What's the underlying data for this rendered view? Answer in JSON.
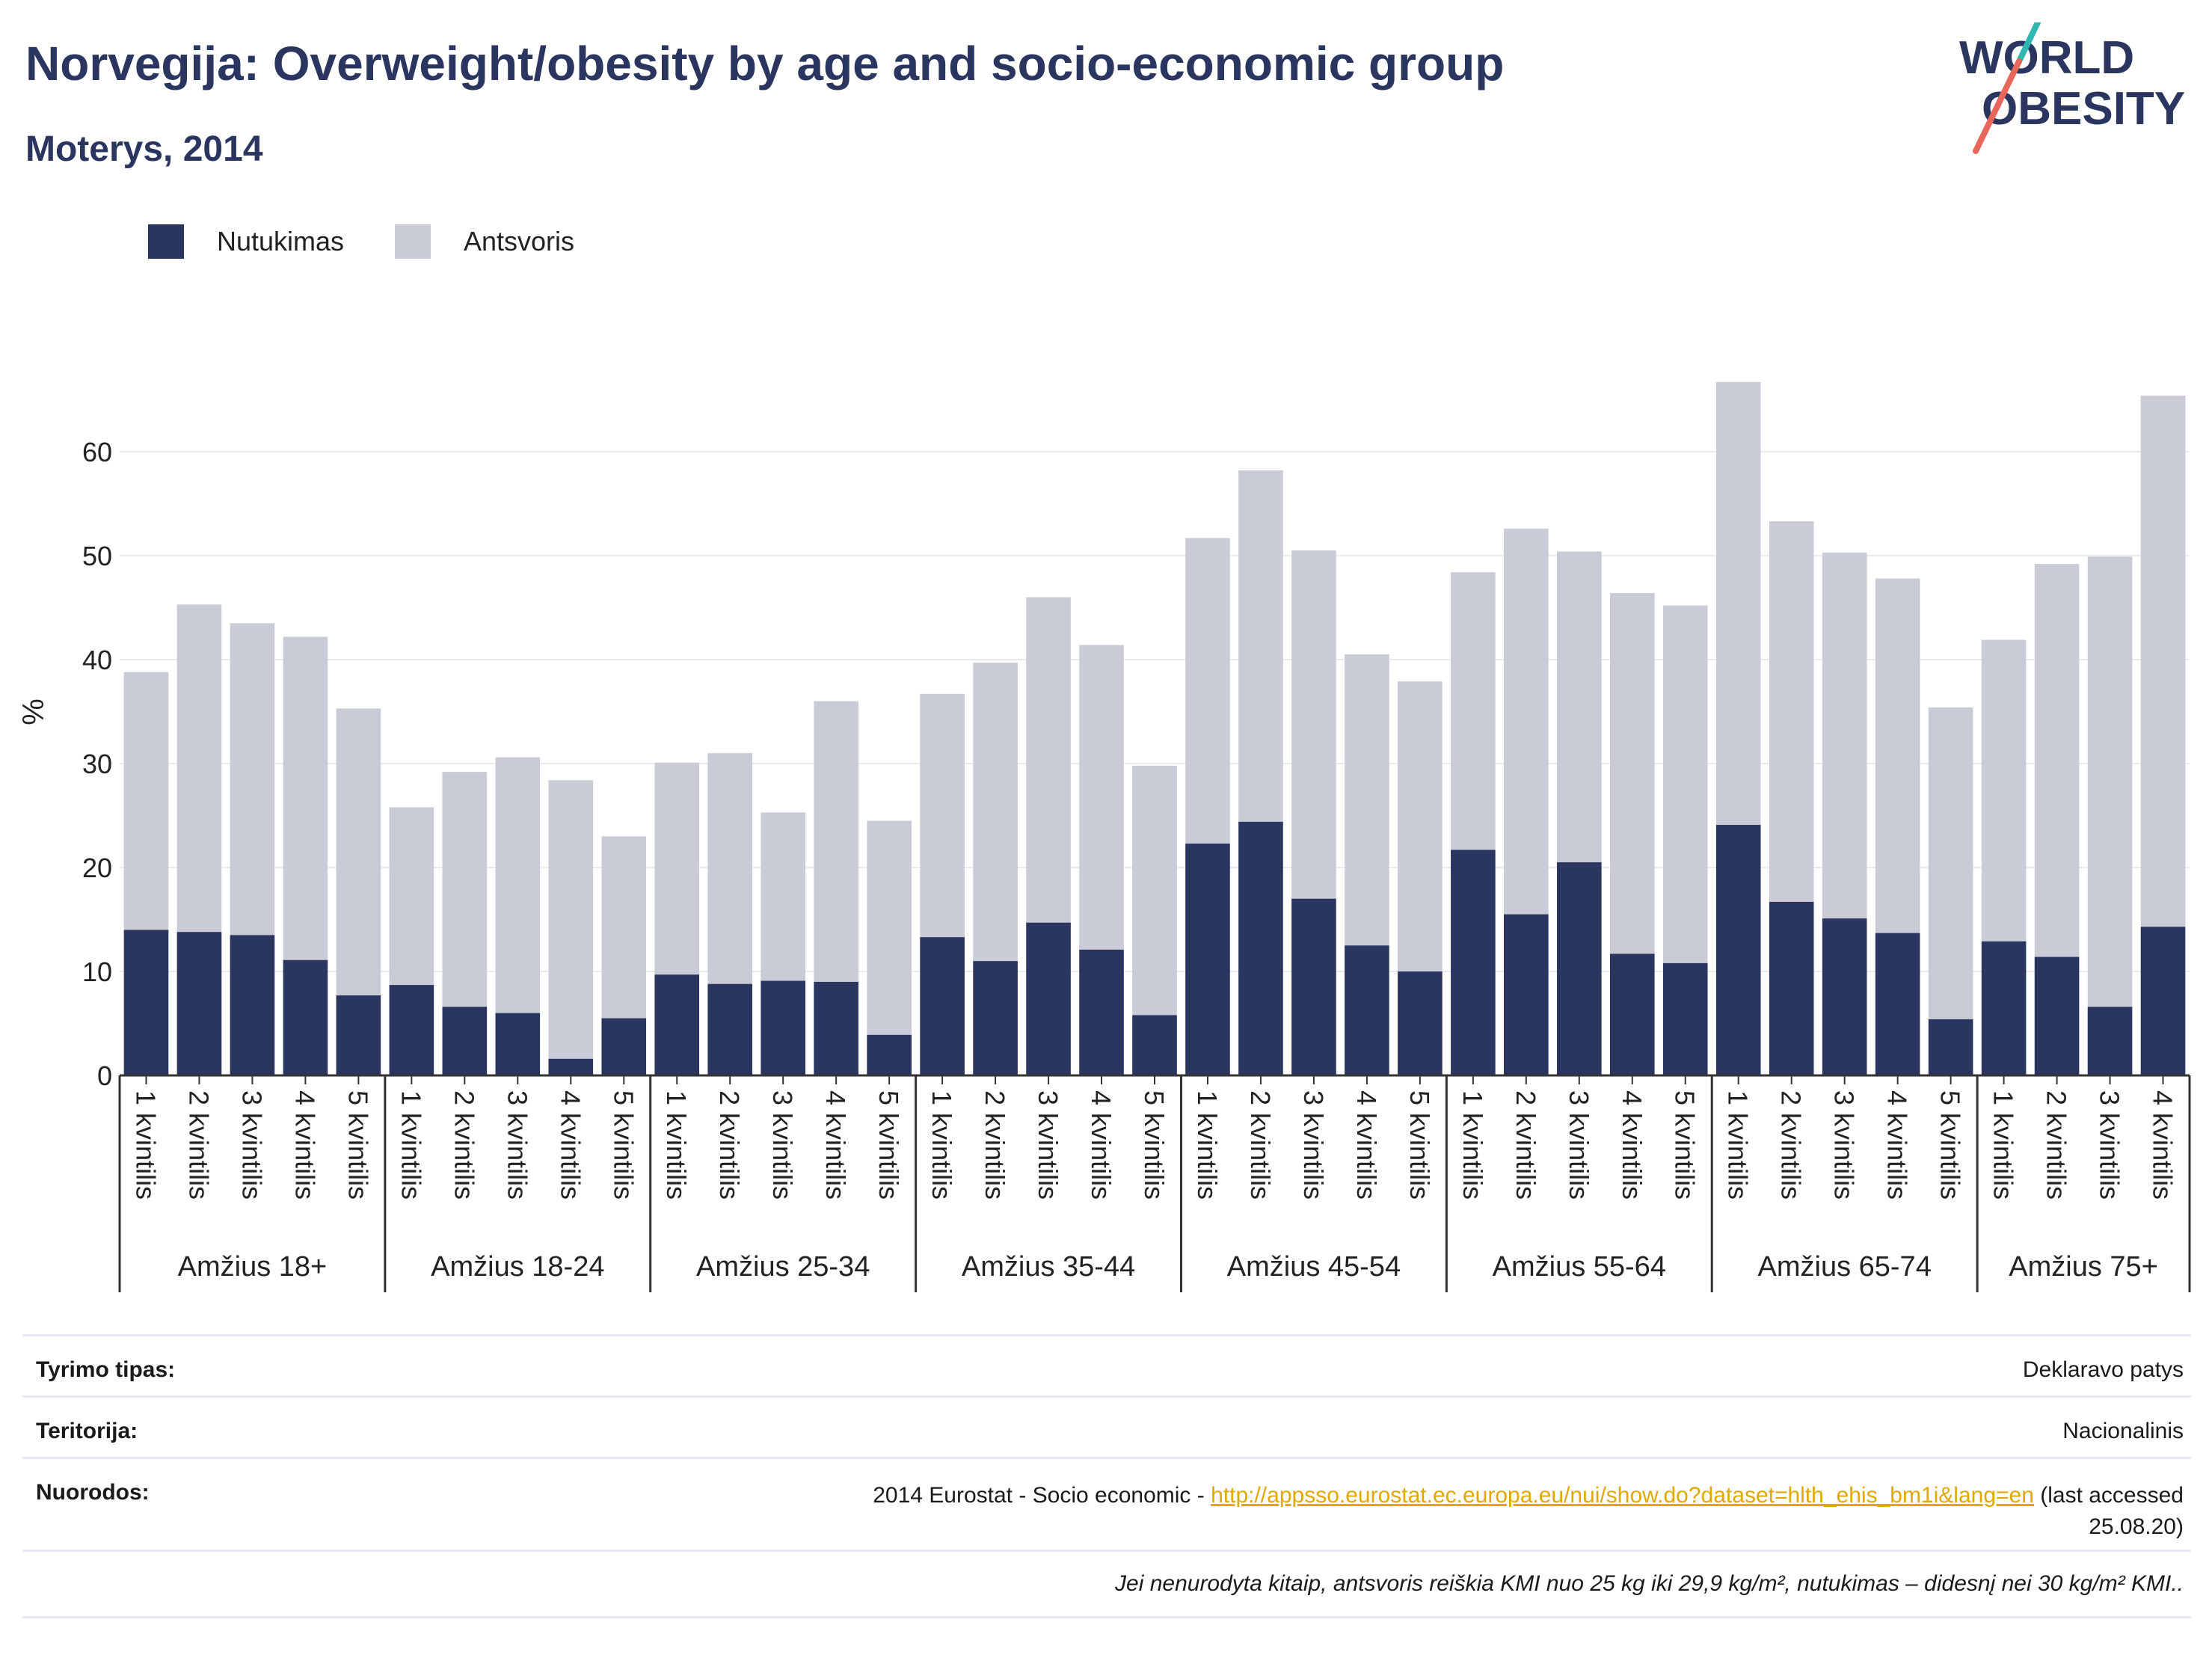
{
  "header": {
    "title": "Norvegija: Overweight/obesity by age and socio-economic group",
    "subtitle": "Moterys, 2014"
  },
  "logo": {
    "line1": "WORLD",
    "line2": "OBESITY"
  },
  "colors": {
    "obesity": "#2a3560",
    "overweight": "#c9cbd6",
    "title": "#2a3560",
    "accent_teal": "#2fb7b0",
    "accent_red": "#e8665a",
    "link": "#e0a800"
  },
  "chart_data": {
    "type": "bar",
    "stacked": true,
    "ylabel": "%",
    "ylim": [
      0,
      68
    ],
    "yticks": [
      0,
      10,
      20,
      30,
      40,
      50,
      60
    ],
    "grid": true,
    "legend_position": "top-left",
    "series": [
      {
        "name": "Nutukimas",
        "color": "#2a3560"
      },
      {
        "name": "Antsvoris",
        "color": "#c9cbd6"
      }
    ],
    "groups": [
      {
        "label": "Amžius 18+",
        "bars": [
          {
            "category": "1 kvintilis",
            "obesity": 14.0,
            "total": 38.8
          },
          {
            "category": "2 kvintilis",
            "obesity": 13.8,
            "total": 45.3
          },
          {
            "category": "3 kvintilis",
            "obesity": 13.5,
            "total": 43.5
          },
          {
            "category": "4 kvintilis",
            "obesity": 11.1,
            "total": 42.2
          },
          {
            "category": "5 kvintilis",
            "obesity": 7.7,
            "total": 35.3
          }
        ]
      },
      {
        "label": "Amžius 18-24",
        "bars": [
          {
            "category": "1 kvintilis",
            "obesity": 8.7,
            "total": 25.8
          },
          {
            "category": "2 kvintilis",
            "obesity": 6.6,
            "total": 29.2
          },
          {
            "category": "3 kvintilis",
            "obesity": 6.0,
            "total": 30.6
          },
          {
            "category": "4 kvintilis",
            "obesity": 1.6,
            "total": 28.4
          },
          {
            "category": "5 kvintilis",
            "obesity": 5.5,
            "total": 23.0
          }
        ]
      },
      {
        "label": "Amžius 25-34",
        "bars": [
          {
            "category": "1 kvintilis",
            "obesity": 9.7,
            "total": 30.1
          },
          {
            "category": "2 kvintilis",
            "obesity": 8.8,
            "total": 31.0
          },
          {
            "category": "3 kvintilis",
            "obesity": 9.1,
            "total": 25.3
          },
          {
            "category": "4 kvintilis",
            "obesity": 9.0,
            "total": 36.0
          },
          {
            "category": "5 kvintilis",
            "obesity": 3.9,
            "total": 24.5
          }
        ]
      },
      {
        "label": "Amžius 35-44",
        "bars": [
          {
            "category": "1 kvintilis",
            "obesity": 13.3,
            "total": 36.7
          },
          {
            "category": "2 kvintilis",
            "obesity": 11.0,
            "total": 39.7
          },
          {
            "category": "3 kvintilis",
            "obesity": 14.7,
            "total": 46.0
          },
          {
            "category": "4 kvintilis",
            "obesity": 12.1,
            "total": 41.4
          },
          {
            "category": "5 kvintilis",
            "obesity": 5.8,
            "total": 29.8
          }
        ]
      },
      {
        "label": "Amžius 45-54",
        "bars": [
          {
            "category": "1 kvintilis",
            "obesity": 22.3,
            "total": 51.7
          },
          {
            "category": "2 kvintilis",
            "obesity": 24.4,
            "total": 58.2
          },
          {
            "category": "3 kvintilis",
            "obesity": 17.0,
            "total": 50.5
          },
          {
            "category": "4 kvintilis",
            "obesity": 12.5,
            "total": 40.5
          },
          {
            "category": "5 kvintilis",
            "obesity": 10.0,
            "total": 37.9
          }
        ]
      },
      {
        "label": "Amžius 55-64",
        "bars": [
          {
            "category": "1 kvintilis",
            "obesity": 21.7,
            "total": 48.4
          },
          {
            "category": "2 kvintilis",
            "obesity": 15.5,
            "total": 52.6
          },
          {
            "category": "3 kvintilis",
            "obesity": 20.5,
            "total": 50.4
          },
          {
            "category": "4 kvintilis",
            "obesity": 11.7,
            "total": 46.4
          },
          {
            "category": "5 kvintilis",
            "obesity": 10.8,
            "total": 45.2
          }
        ]
      },
      {
        "label": "Amžius 65-74",
        "bars": [
          {
            "category": "1 kvintilis",
            "obesity": 24.1,
            "total": 66.7
          },
          {
            "category": "2 kvintilis",
            "obesity": 16.7,
            "total": 53.3
          },
          {
            "category": "3 kvintilis",
            "obesity": 15.1,
            "total": 50.3
          },
          {
            "category": "4 kvintilis",
            "obesity": 13.7,
            "total": 47.8
          },
          {
            "category": "5 kvintilis",
            "obesity": 5.4,
            "total": 35.4
          }
        ]
      },
      {
        "label": "Amžius 75+",
        "bars": [
          {
            "category": "1 kvintilis",
            "obesity": 12.9,
            "total": 41.9
          },
          {
            "category": "2 kvintilis",
            "obesity": 11.4,
            "total": 49.2
          },
          {
            "category": "3 kvintilis",
            "obesity": 6.6,
            "total": 49.9
          },
          {
            "category": "4 kvintilis",
            "obesity": 14.3,
            "total": 65.4
          }
        ]
      }
    ]
  },
  "info": {
    "survey_label": "Tyrimo tipas:",
    "survey_value": "Deklaravo patys",
    "territory_label": "Teritorija:",
    "territory_value": "Nacionalinis",
    "refs_label": "Nuorodos:",
    "refs_prefix": "2014 Eurostat - Socio economic - ",
    "refs_link": "http://appsso.eurostat.ec.europa.eu/nui/show.do?dataset=hlth_ehis_bm1i&lang=en",
    "refs_suffix1": " (last accessed",
    "refs_suffix2": "25.08.20)",
    "note": "Jei nenurodyta kitaip, antsvoris reiškia KMI nuo 25 kg iki 29,9 kg/m², nutukimas – didesnį nei 30 kg/m² KMI.."
  }
}
